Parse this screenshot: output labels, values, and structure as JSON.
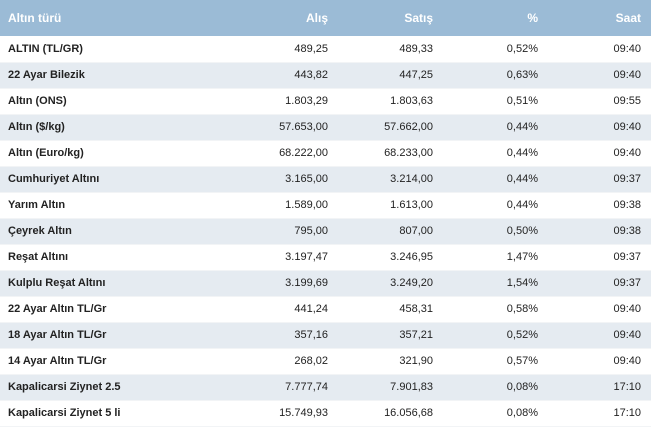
{
  "table": {
    "headers": {
      "name": "Altın türü",
      "buy": "Alış",
      "sell": "Satış",
      "change": "%",
      "time": "Saat"
    },
    "rows": [
      {
        "name": "ALTIN (TL/GR)",
        "buy": "489,25",
        "sell": "489,33",
        "change": "0,52%",
        "time": "09:40"
      },
      {
        "name": "22 Ayar Bilezik",
        "buy": "443,82",
        "sell": "447,25",
        "change": "0,63%",
        "time": "09:40"
      },
      {
        "name": "Altın (ONS)",
        "buy": "1.803,29",
        "sell": "1.803,63",
        "change": "0,51%",
        "time": "09:55"
      },
      {
        "name": "Altın ($/kg)",
        "buy": "57.653,00",
        "sell": "57.662,00",
        "change": "0,44%",
        "time": "09:40"
      },
      {
        "name": "Altın (Euro/kg)",
        "buy": "68.222,00",
        "sell": "68.233,00",
        "change": "0,44%",
        "time": "09:40"
      },
      {
        "name": "Cumhuriyet Altını",
        "buy": "3.165,00",
        "sell": "3.214,00",
        "change": "0,44%",
        "time": "09:37"
      },
      {
        "name": "Yarım Altın",
        "buy": "1.589,00",
        "sell": "1.613,00",
        "change": "0,44%",
        "time": "09:38"
      },
      {
        "name": "Çeyrek Altın",
        "buy": "795,00",
        "sell": "807,00",
        "change": "0,50%",
        "time": "09:38"
      },
      {
        "name": "Reşat Altını",
        "buy": "3.197,47",
        "sell": "3.246,95",
        "change": "1,47%",
        "time": "09:37"
      },
      {
        "name": "Kulplu Reşat Altını",
        "buy": "3.199,69",
        "sell": "3.249,20",
        "change": "1,54%",
        "time": "09:37"
      },
      {
        "name": "22 Ayar Altın TL/Gr",
        "buy": "441,24",
        "sell": "458,31",
        "change": "0,58%",
        "time": "09:40"
      },
      {
        "name": "18 Ayar Altın TL/Gr",
        "buy": "357,16",
        "sell": "357,21",
        "change": "0,52%",
        "time": "09:40"
      },
      {
        "name": "14 Ayar Altın TL/Gr",
        "buy": "268,02",
        "sell": "321,90",
        "change": "0,57%",
        "time": "09:40"
      },
      {
        "name": "Kapalicarsi Ziynet 2.5",
        "buy": "7.777,74",
        "sell": "7.901,83",
        "change": "0,08%",
        "time": "17:10"
      },
      {
        "name": "Kapalicarsi Ziynet 5 li",
        "buy": "15.749,93",
        "sell": "16.056,68",
        "change": "0,08%",
        "time": "17:10"
      }
    ]
  },
  "colors": {
    "header_bg": "#9bbbd6",
    "header_text": "#ffffff",
    "row_alt_bg": "#e5ebf1"
  }
}
